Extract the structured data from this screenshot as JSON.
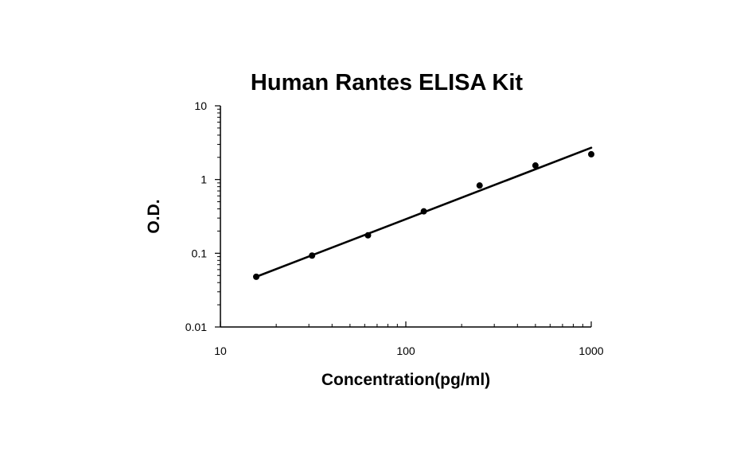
{
  "chart_data": {
    "type": "scatter",
    "title": "Human Rantes ELISA Kit",
    "xlabel": "Concentration(pg/ml)",
    "ylabel": "O.D.",
    "x_scale": "log",
    "y_scale": "log",
    "xlim": [
      10,
      1000
    ],
    "ylim": [
      0.01,
      10
    ],
    "x_ticks": [
      "10",
      "100",
      "1000"
    ],
    "y_ticks": [
      "10",
      "1",
      "0.1",
      "0.01"
    ],
    "grid": false,
    "legend": "none",
    "series": [
      {
        "points": [
          {
            "x": 15.6,
            "y": 0.048
          },
          {
            "x": 31.2,
            "y": 0.093
          },
          {
            "x": 62.5,
            "y": 0.175
          },
          {
            "x": 125,
            "y": 0.37
          },
          {
            "x": 250,
            "y": 0.83
          },
          {
            "x": 500,
            "y": 1.55
          },
          {
            "x": 1000,
            "y": 2.2
          }
        ]
      }
    ],
    "trendline": {
      "x": [
        15.6,
        1000
      ],
      "y": [
        0.048,
        2.7
      ]
    }
  }
}
